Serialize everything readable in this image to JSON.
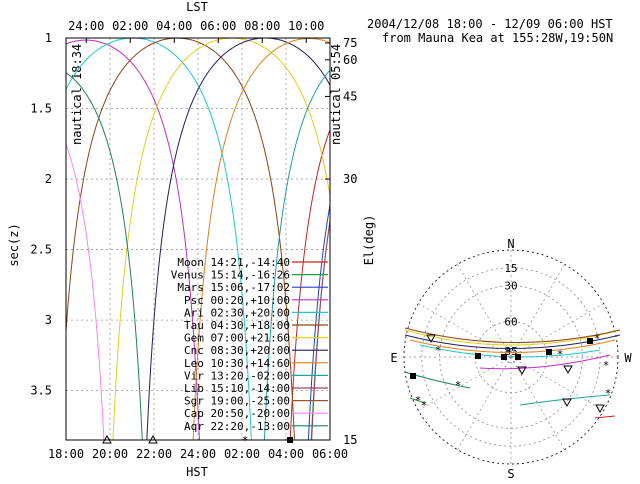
{
  "header": {
    "line1": "2004/12/08 18:00 - 12/09 06:00 HST",
    "line2": "from Mauna Kea at 155:28W,19:50N"
  },
  "colors": {
    "Moon": "#cc2020",
    "Venus": "#20a040",
    "Mars": "#2040d0",
    "Psc": "#c030c0",
    "Ari": "#20c8c8",
    "Tau": "#8b4513",
    "Gem": "#e0d020",
    "Cnc": "#202060",
    "Leo": "#e08020",
    "Vir": "#20a0a0",
    "Lib": "#a04060",
    "Sgr": "#a0522d",
    "Cap": "#ff80ff",
    "Aqr": "#208060"
  },
  "chart_data": [
    {
      "type": "line",
      "title": "",
      "xlabel": "HST",
      "x2label": "LST",
      "ylabel": "sec(z)",
      "y2label": "El(deg)",
      "x_ticks": [
        "18:00",
        "20:00",
        "22:00",
        "24:00",
        "02:00",
        "04:00",
        "06:00"
      ],
      "x2_ticks": [
        "24:00",
        "02:00",
        "04:00",
        "06:00",
        "08:00",
        "10:00"
      ],
      "y_ticks": [
        "1",
        "1.5",
        "2",
        "2.5",
        "3",
        "3.5"
      ],
      "y2_ticks": [
        "75",
        "60",
        "45",
        "30",
        "15"
      ],
      "ylim": [
        1,
        3.85
      ],
      "y_inverted": true,
      "x_range_hours": [
        18,
        30
      ],
      "grid": true,
      "twilight_left": "nautical 18:34",
      "twilight_right": "nautical 05:54",
      "legend_placement": "bottom-right",
      "series": [
        {
          "name": "Moon",
          "coord": "14:21,-14:40",
          "transit_hst": 32.7,
          "decl": -14.7
        },
        {
          "name": "Venus",
          "coord": "15:14,-16:26",
          "transit_hst": 33.6,
          "decl": -16.4
        },
        {
          "name": "Mars",
          "coord": "15:06,-17:02",
          "transit_hst": 33.45,
          "decl": -17.0
        },
        {
          "name": "Psc",
          "coord": "00:20,+10:00",
          "transit_hst": 18.9,
          "decl": 10.0
        },
        {
          "name": "Ari",
          "coord": "02:30,+20:00",
          "transit_hst": 21.05,
          "decl": 20.0
        },
        {
          "name": "Tau",
          "coord": "04:30,+18:00",
          "transit_hst": 23.05,
          "decl": 18.0
        },
        {
          "name": "Gem",
          "coord": "07:00,+21:60",
          "transit_hst": 25.55,
          "decl": 22.0
        },
        {
          "name": "Cnc",
          "coord": "08:30,+20:00",
          "transit_hst": 27.05,
          "decl": 20.0
        },
        {
          "name": "Leo",
          "coord": "10:30,+14:60",
          "transit_hst": 29.05,
          "decl": 15.0
        },
        {
          "name": "Vir",
          "coord": "13:20,-02:00",
          "transit_hst": 31.9,
          "decl": -2.0
        },
        {
          "name": "Lib",
          "coord": "15:10,-14:00",
          "transit_hst": 33.7,
          "decl": -14.0
        },
        {
          "name": "Sgr",
          "coord": "19:00,-25:00",
          "transit_hst": 37.55,
          "decl": -25.0
        },
        {
          "name": "Cap",
          "coord": "20:50,-20:00",
          "transit_hst": 39.4,
          "decl": -20.0
        },
        {
          "name": "Aqr",
          "coord": "22:20,-13:00",
          "transit_hst": 40.9,
          "decl": -13.0
        }
      ],
      "latitude_deg": 19.83,
      "markers_at_x_axis": [
        "triangle",
        "triangle",
        "star",
        "square"
      ]
    },
    {
      "type": "scatter",
      "title": "",
      "projection": "polar-sky",
      "direction_labels": {
        "n": "N",
        "s": "S",
        "e": "E",
        "w": "W"
      },
      "ring_labels": [
        "15",
        "30",
        "60",
        "85"
      ],
      "ring_elevations_deg": [
        15,
        30,
        60,
        85
      ],
      "grid": true
    }
  ]
}
